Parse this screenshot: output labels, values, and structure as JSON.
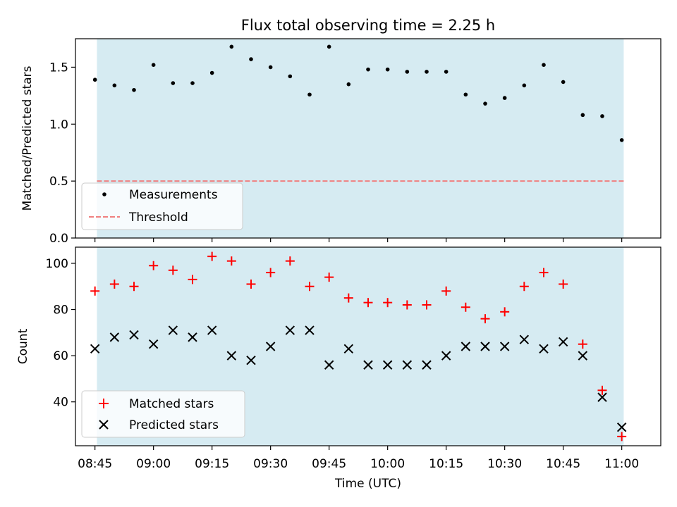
{
  "chart_data": {
    "title": "Flux total observing time = 2.25 h",
    "xlabel": "Time (UTC)",
    "x_ticks": [
      "08:45",
      "09:00",
      "09:15",
      "09:30",
      "09:45",
      "10:00",
      "10:15",
      "10:30",
      "10:45",
      "11:00"
    ],
    "x_tick_minutes": [
      525,
      540,
      555,
      570,
      585,
      600,
      615,
      630,
      645,
      660
    ],
    "xlim_minutes": [
      520,
      670
    ],
    "shaded_span_minutes": [
      525.5,
      660.5
    ],
    "shade_color": "#add8e6",
    "times": [
      "08:45",
      "08:50",
      "08:55",
      "09:00",
      "09:05",
      "09:10",
      "09:15",
      "09:20",
      "09:25",
      "09:30",
      "09:35",
      "09:40",
      "09:45",
      "09:50",
      "09:55",
      "10:00",
      "10:05",
      "10:10",
      "10:15",
      "10:20",
      "10:25",
      "10:30",
      "10:35",
      "10:40",
      "10:45",
      "10:50",
      "10:55",
      "11:00"
    ],
    "panels": [
      {
        "type": "scatter",
        "ylabel": "Matched/Predicted stars",
        "ylim": [
          0,
          1.75
        ],
        "y_ticks": [
          "0.0",
          "0.5",
          "1.0",
          "1.5"
        ],
        "y_tick_values": [
          0,
          0.5,
          1.0,
          1.5
        ],
        "series": [
          {
            "name": "Measurements",
            "marker": "dot",
            "color": "#000000",
            "values": [
              1.39,
              1.34,
              1.3,
              1.52,
              1.36,
              1.36,
              1.45,
              1.68,
              1.57,
              1.5,
              1.42,
              1.26,
              1.68,
              1.35,
              1.48,
              1.48,
              1.46,
              1.46,
              1.46,
              1.26,
              1.18,
              1.23,
              1.34,
              1.52,
              1.37,
              1.08,
              1.07,
              0.86
            ]
          }
        ],
        "threshold": {
          "name": "Threshold",
          "value": 0.5,
          "color": "#f08080"
        },
        "legend_position": "lower-left"
      },
      {
        "type": "scatter",
        "ylabel": "Count",
        "ylim": [
          21,
          107
        ],
        "y_ticks": [
          "40",
          "60",
          "80",
          "100"
        ],
        "y_tick_values": [
          40,
          60,
          80,
          100
        ],
        "series": [
          {
            "name": "Matched stars",
            "marker": "plus",
            "color": "#ff0000",
            "values": [
              88,
              91,
              90,
              99,
              97,
              93,
              103,
              101,
              91,
              96,
              101,
              90,
              94,
              85,
              83,
              83,
              82,
              82,
              88,
              81,
              76,
              79,
              90,
              96,
              91,
              65,
              45,
              25
            ]
          },
          {
            "name": "Predicted stars",
            "marker": "x",
            "color": "#000000",
            "values": [
              63,
              68,
              69,
              65,
              71,
              68,
              71,
              60,
              58,
              64,
              71,
              71,
              56,
              63,
              56,
              56,
              56,
              56,
              60,
              64,
              64,
              64,
              67,
              63,
              66,
              60,
              42,
              29
            ]
          }
        ],
        "legend_position": "lower-left"
      }
    ]
  }
}
